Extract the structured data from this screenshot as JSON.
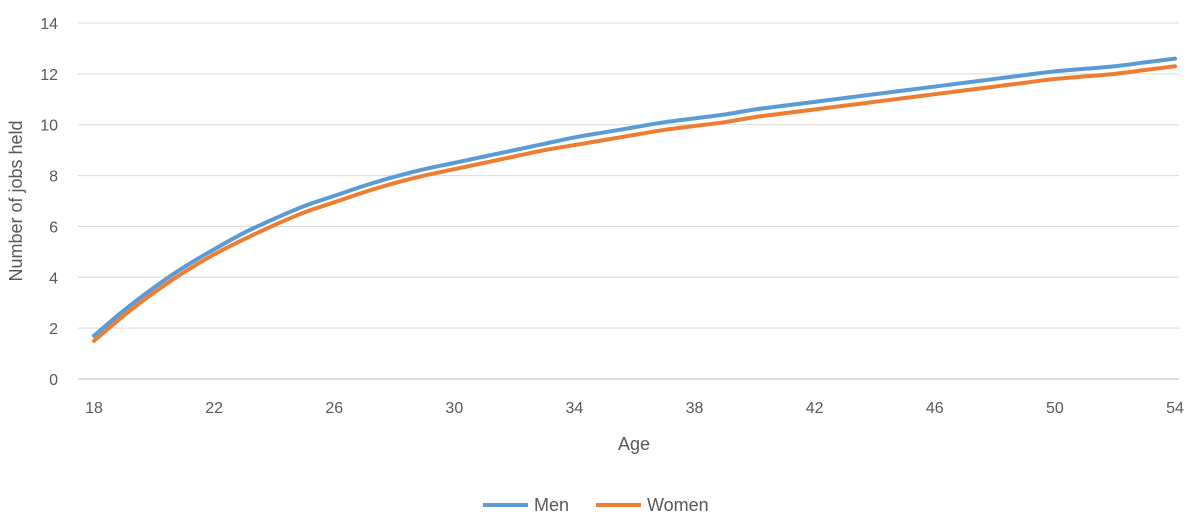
{
  "chart_data": {
    "type": "line",
    "x": [
      18,
      19,
      20,
      21,
      22,
      23,
      24,
      25,
      26,
      27,
      28,
      29,
      30,
      31,
      32,
      33,
      34,
      35,
      36,
      37,
      38,
      39,
      40,
      41,
      42,
      43,
      44,
      45,
      46,
      47,
      48,
      49,
      50,
      51,
      52,
      53,
      54
    ],
    "series": [
      {
        "name": "Men",
        "color": "#5B9BD5",
        "values": [
          1.7,
          2.7,
          3.6,
          4.4,
          5.1,
          5.75,
          6.3,
          6.8,
          7.2,
          7.6,
          7.95,
          8.25,
          8.5,
          8.75,
          9.0,
          9.25,
          9.5,
          9.7,
          9.9,
          10.1,
          10.25,
          10.4,
          10.6,
          10.75,
          10.9,
          11.05,
          11.2,
          11.35,
          11.5,
          11.65,
          11.8,
          11.95,
          12.1,
          12.2,
          12.3,
          12.45,
          12.6
        ]
      },
      {
        "name": "Women",
        "color": "#ED7D31",
        "values": [
          1.5,
          2.5,
          3.4,
          4.2,
          4.9,
          5.5,
          6.05,
          6.55,
          6.95,
          7.35,
          7.7,
          8.0,
          8.25,
          8.5,
          8.75,
          9.0,
          9.2,
          9.4,
          9.6,
          9.8,
          9.95,
          10.1,
          10.3,
          10.45,
          10.6,
          10.75,
          10.9,
          11.05,
          11.2,
          11.35,
          11.5,
          11.65,
          11.8,
          11.9,
          12.0,
          12.15,
          12.3
        ]
      }
    ],
    "xlabel": "Age",
    "ylabel": "Number of jobs held",
    "xlim": [
      18,
      54
    ],
    "ylim": [
      0,
      14
    ],
    "xticks": [
      "18",
      "22",
      "26",
      "30",
      "34",
      "38",
      "42",
      "46",
      "50",
      "54"
    ],
    "yticks": [
      "0",
      "2",
      "4",
      "6",
      "8",
      "10",
      "12",
      "14"
    ],
    "grid": true,
    "legend_position": "bottom"
  }
}
